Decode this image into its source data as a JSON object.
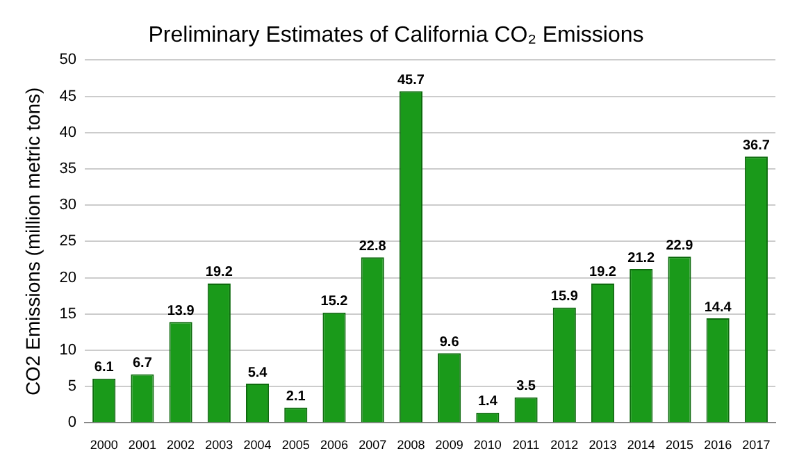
{
  "chart_data": {
    "type": "bar",
    "title": "Preliminary Estimates of California CO₂ Emissions",
    "ylabel": "CO2 Emissions (million metric tons)",
    "categories": [
      "2000",
      "2001",
      "2002",
      "2003",
      "2004",
      "2005",
      "2006",
      "2007",
      "2008",
      "2009",
      "2010",
      "2011",
      "2012",
      "2013",
      "2014",
      "2015",
      "2016",
      "2017"
    ],
    "values": [
      6.1,
      6.7,
      13.9,
      19.2,
      5.4,
      2.1,
      15.2,
      22.8,
      45.7,
      9.6,
      1.4,
      3.5,
      15.9,
      19.2,
      21.2,
      22.9,
      14.4,
      36.7
    ],
    "color": "#1a9a1a",
    "ylim": [
      0,
      50
    ],
    "yticks": [
      0,
      5,
      10,
      15,
      20,
      25,
      30,
      35,
      40,
      45,
      50
    ],
    "grid": "y",
    "data_labels": true,
    "legend": false
  }
}
